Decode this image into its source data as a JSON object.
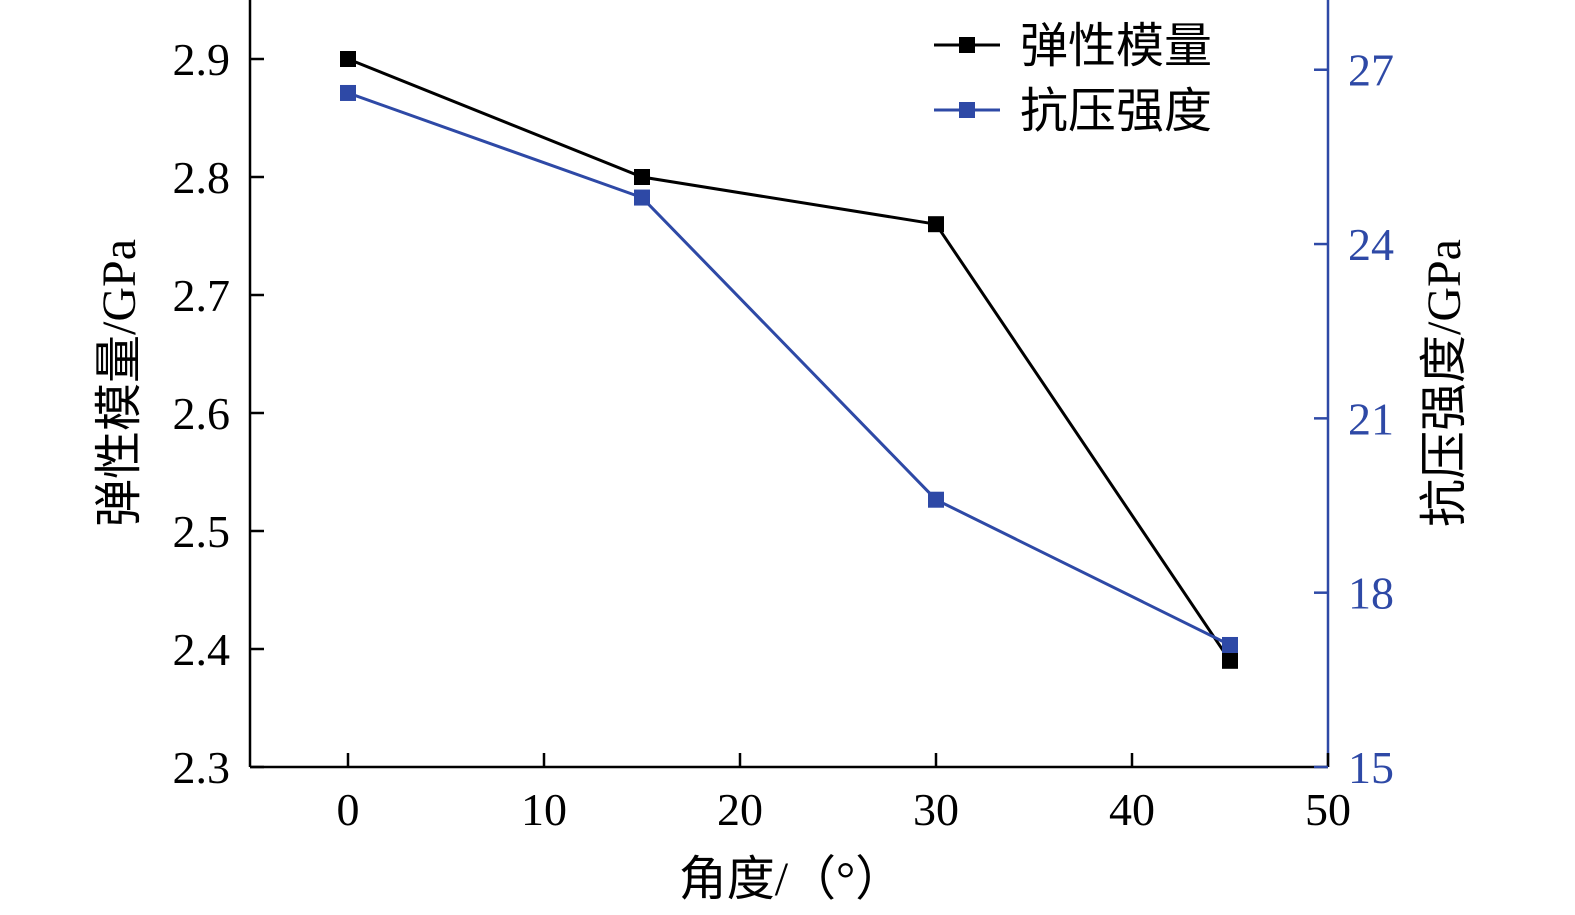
{
  "chart_data": {
    "type": "line",
    "x": [
      0,
      15,
      30,
      45
    ],
    "xlabel": "角度/（°）",
    "xlim": [
      -5,
      50
    ],
    "xticks": [
      0,
      10,
      20,
      30,
      40,
      50
    ],
    "xtick_labels": [
      "0",
      "10",
      "20",
      "30",
      "40",
      "50"
    ],
    "y_left": {
      "label": "弹性模量/GPa",
      "lim": [
        2.3,
        2.95
      ],
      "ticks": [
        2.3,
        2.4,
        2.5,
        2.6,
        2.7,
        2.8,
        2.9
      ],
      "tick_labels": [
        "2.3",
        "2.4",
        "2.5",
        "2.6",
        "2.7",
        "2.8",
        "2.9"
      ]
    },
    "y_right": {
      "label": "抗压强度/GPa",
      "lim": [
        15,
        28.2
      ],
      "ticks": [
        15,
        18,
        21,
        24,
        27
      ],
      "tick_labels": [
        "15",
        "18",
        "21",
        "24",
        "27"
      ]
    },
    "series": [
      {
        "name": "弹性模量",
        "axis": "left",
        "color": "#000000",
        "marker": "square",
        "values": [
          2.9,
          2.8,
          2.76,
          2.39
        ]
      },
      {
        "name": "抗压强度",
        "axis": "right",
        "color": "#2e49a6",
        "marker": "square",
        "values": [
          26.6,
          24.8,
          19.6,
          17.1
        ]
      }
    ],
    "legend_position": "top-right",
    "grid": false
  }
}
